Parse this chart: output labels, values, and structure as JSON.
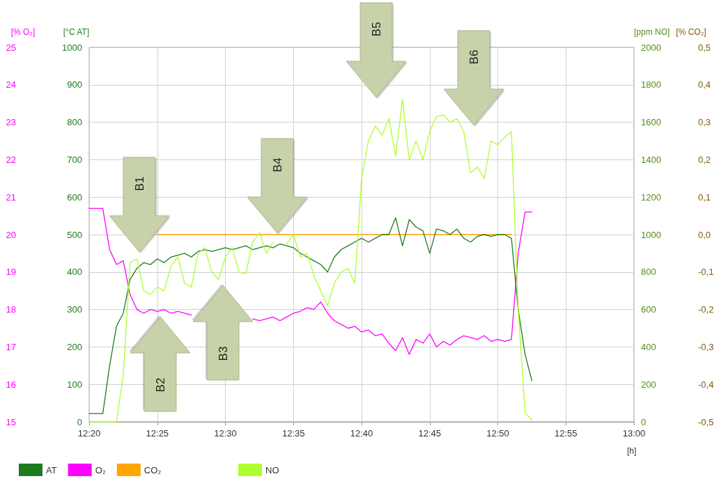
{
  "chart_data": [
    {
      "type": "line",
      "xlabel": "[h]",
      "ylabel": "[°C AT]",
      "y2label": "[% O₂]",
      "y3label": "[% CO₂]",
      "x": [
        12.3333,
        12.3417,
        12.35,
        12.3583,
        12.3667,
        12.375,
        12.3833,
        12.3917,
        12.4,
        12.4083,
        12.4167,
        12.425,
        12.4333,
        12.4417,
        12.45,
        12.4583,
        12.4667,
        12.475,
        12.4833,
        12.4917,
        12.5,
        12.5083,
        12.5167,
        12.525,
        12.5333,
        12.5417,
        12.55,
        12.5583,
        12.5667,
        12.575,
        12.5833,
        12.5917,
        12.6,
        12.6083,
        12.6167,
        12.625,
        12.6333,
        12.6417,
        12.65,
        12.6583,
        12.6667,
        12.675,
        12.6833,
        12.6917,
        12.7,
        12.7083,
        12.7167,
        12.725,
        12.7333,
        12.7417,
        12.75,
        12.7583,
        12.7667,
        12.775,
        12.7833,
        12.7917,
        12.8,
        12.8083,
        12.8167,
        12.825,
        12.8333,
        12.8417,
        12.85,
        12.8583,
        12.8667,
        12.875
      ],
      "xlim": [
        12.3333,
        13
      ],
      "xticks": [
        {
          "value": 12.3333,
          "label": "12:20"
        },
        {
          "value": 12.4167,
          "label": "12:25"
        },
        {
          "value": 12.5,
          "label": "12:30"
        },
        {
          "value": 12.5833,
          "label": "12:35"
        },
        {
          "value": 12.6667,
          "label": "12:40"
        },
        {
          "value": 12.75,
          "label": "12:45"
        },
        {
          "value": 12.8333,
          "label": "12:50"
        },
        {
          "value": 12.9167,
          "label": "12:55"
        },
        {
          "value": 13,
          "label": "13:00"
        }
      ],
      "ylim": [
        0,
        1000
      ],
      "yticks": [
        0,
        100,
        200,
        300,
        400,
        500,
        600,
        700,
        800,
        900,
        1000
      ],
      "y2lim": [
        15,
        25
      ],
      "y2ticks": [
        15,
        16,
        17,
        18,
        19,
        20,
        21,
        22,
        23,
        24,
        25
      ],
      "y3lim": [
        -0.5,
        0.5
      ],
      "y3ticks": [
        {
          "value": -0.5,
          "label": "-0,5"
        },
        {
          "value": -0.4,
          "label": "-0,4"
        },
        {
          "value": -0.3,
          "label": "-0,3"
        },
        {
          "value": -0.2,
          "label": "-0,2"
        },
        {
          "value": -0.1,
          "label": "-0,1"
        },
        {
          "value": 0,
          "label": "0,0"
        },
        {
          "value": 0.1,
          "label": "0,1"
        },
        {
          "value": 0.2,
          "label": "0,2"
        },
        {
          "value": 0.3,
          "label": "0,3"
        },
        {
          "value": 0.4,
          "label": "0,4"
        },
        {
          "value": 0.5,
          "label": "0,5"
        }
      ],
      "series": [
        {
          "name": "AT",
          "color": "#1e7b1e",
          "values": [
            22,
            22,
            22,
            150,
            255,
            290,
            380,
            410,
            425,
            420,
            435,
            425,
            440,
            445,
            450,
            440,
            455,
            460,
            455,
            460,
            465,
            460,
            465,
            470,
            460,
            465,
            470,
            465,
            475,
            470,
            465,
            450,
            440,
            430,
            420,
            400,
            440,
            460,
            470,
            480,
            490,
            480,
            490,
            500,
            500,
            545,
            470,
            540,
            520,
            510,
            450,
            515,
            510,
            500,
            515,
            490,
            480,
            495,
            500,
            495,
            500,
            500,
            490,
            300,
            180,
            110
          ]
        },
        {
          "name": "O₂",
          "color": "#ff00ff",
          "axis": "y2",
          "values": [
            20.7,
            20.7,
            20.7,
            19.6,
            19.2,
            19.3,
            18.4,
            18.0,
            17.9,
            18.0,
            17.95,
            18.0,
            17.9,
            17.95,
            17.9,
            17.85,
            null,
            null,
            null,
            null,
            null,
            null,
            null,
            null,
            17.75,
            17.7,
            17.75,
            17.8,
            17.7,
            17.8,
            17.9,
            17.95,
            18.05,
            18.0,
            18.2,
            17.9,
            17.7,
            17.6,
            17.5,
            17.55,
            17.4,
            17.45,
            17.3,
            17.35,
            17.1,
            16.9,
            17.25,
            16.8,
            17.2,
            17.1,
            17.35,
            17.0,
            17.15,
            17.05,
            17.2,
            17.3,
            17.25,
            17.2,
            17.3,
            17.15,
            17.2,
            17.15,
            17.2,
            19.5,
            20.6,
            20.6
          ]
        },
        {
          "name": "CO₂",
          "color": "#ffa500",
          "axis": "y3",
          "values": [
            null,
            null,
            null,
            null,
            null,
            null,
            null,
            null,
            null,
            null,
            0,
            0,
            0,
            0,
            0,
            0,
            0,
            0,
            0,
            0,
            0,
            0,
            0,
            0,
            0,
            0,
            0,
            0,
            0,
            0,
            0,
            0,
            0,
            0,
            0,
            0,
            0,
            0,
            0,
            0,
            0,
            0,
            0,
            0,
            0,
            0,
            0,
            0,
            0,
            0,
            0,
            0,
            0,
            0,
            0,
            0,
            0,
            0,
            0,
            0,
            0,
            0,
            0,
            null,
            null,
            null
          ]
        }
      ],
      "annotations": [
        "B1",
        "B2",
        "B3",
        "B4",
        "B5",
        "B6"
      ],
      "grid": true,
      "legend": "bottom left",
      "marker": "none",
      "line_style": "solid"
    },
    {
      "type": "line",
      "ylabel": "[ppm NO]",
      "x": [
        12.3333,
        12.3417,
        12.35,
        12.3583,
        12.3667,
        12.375,
        12.3833,
        12.3917,
        12.4,
        12.4083,
        12.4167,
        12.425,
        12.4333,
        12.4417,
        12.45,
        12.4583,
        12.4667,
        12.475,
        12.4833,
        12.4917,
        12.5,
        12.5083,
        12.5167,
        12.525,
        12.5333,
        12.5417,
        12.55,
        12.5583,
        12.5667,
        12.575,
        12.5833,
        12.5917,
        12.6,
        12.6083,
        12.6167,
        12.625,
        12.6333,
        12.6417,
        12.65,
        12.6583,
        12.6667,
        12.675,
        12.6833,
        12.6917,
        12.7,
        12.7083,
        12.7167,
        12.725,
        12.7333,
        12.7417,
        12.75,
        12.7583,
        12.7667,
        12.775,
        12.7833,
        12.7917,
        12.8,
        12.8083,
        12.8167,
        12.825,
        12.8333,
        12.8417,
        12.85,
        12.8583,
        12.8667,
        12.875
      ],
      "xlim": [
        12.3333,
        13
      ],
      "ylim": [
        0,
        2000
      ],
      "yticks": [
        0,
        200,
        400,
        600,
        800,
        1000,
        1200,
        1400,
        1600,
        1800,
        2000
      ],
      "series": [
        {
          "name": "NO",
          "color": "#adff2f",
          "values": [
            0,
            0,
            0,
            0,
            0,
            250,
            850,
            870,
            700,
            680,
            720,
            700,
            830,
            880,
            740,
            720,
            900,
            930,
            800,
            760,
            880,
            930,
            800,
            790,
            960,
            1010,
            900,
            960,
            null,
            950,
            1000,
            880,
            900,
            780,
            700,
            620,
            740,
            800,
            820,
            740,
            1300,
            1500,
            1580,
            1530,
            1620,
            1420,
            1720,
            1400,
            1500,
            1400,
            1550,
            1630,
            1640,
            1600,
            1620,
            1550,
            1330,
            1360,
            1300,
            1500,
            1480,
            1520,
            1550,
            600,
            50,
            10
          ]
        }
      ],
      "tick_labels": "y",
      "legend": "bottom left",
      "marker": "none",
      "line_style": "solid"
    }
  ]
}
